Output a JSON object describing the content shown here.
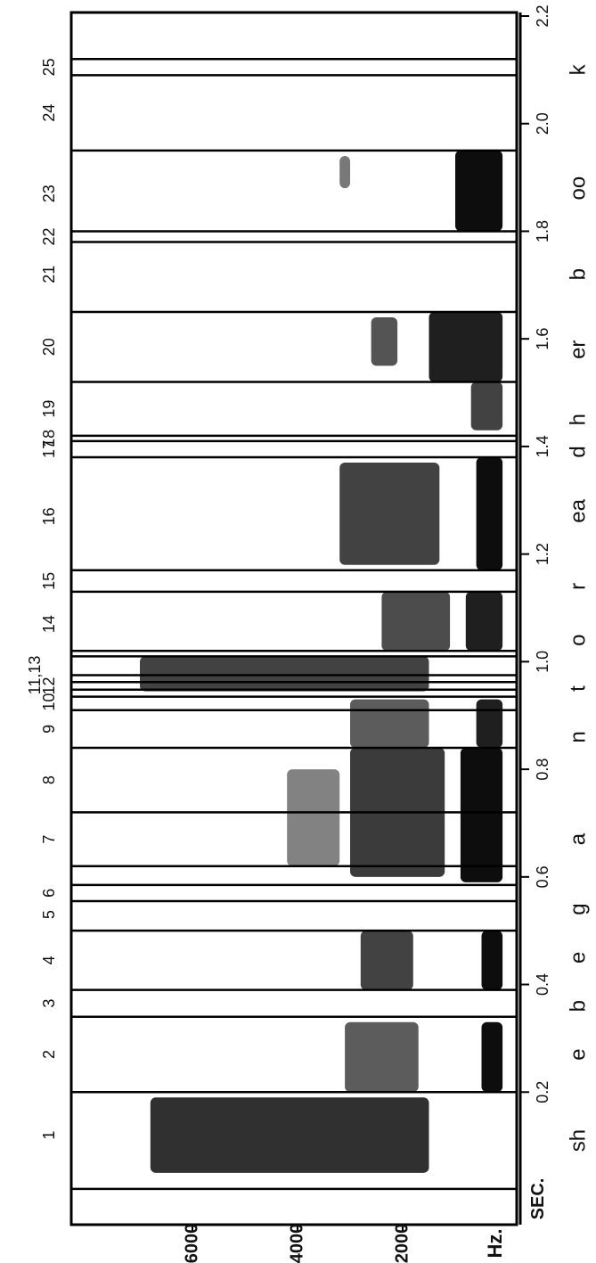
{
  "chart_data": {
    "type": "heatmap",
    "title": "",
    "time_axis": {
      "label": "SEC.",
      "range": [
        0,
        2.2
      ],
      "ticks": [
        {
          "value": 0.2,
          "label": "0.2"
        },
        {
          "value": 0.4,
          "label": "0.4"
        },
        {
          "value": 0.6,
          "label": "0.6"
        },
        {
          "value": 0.8,
          "label": "0.8"
        },
        {
          "value": 1.0,
          "label": "1.0"
        },
        {
          "value": 1.2,
          "label": "1.2"
        },
        {
          "value": 1.4,
          "label": "1.4"
        },
        {
          "value": 1.6,
          "label": "1.6"
        },
        {
          "value": 1.8,
          "label": "1.8"
        },
        {
          "value": 2.0,
          "label": "2.0"
        },
        {
          "value": 2.2,
          "label": "2.2"
        }
      ]
    },
    "frequency_axis": {
      "label": "Hz.",
      "range": [
        0,
        8000
      ],
      "ticks": [
        {
          "value": 2000,
          "label": "2000"
        },
        {
          "value": 4000,
          "label": "4000"
        },
        {
          "value": 6000,
          "label": "6000"
        }
      ]
    },
    "segment_boundaries": [
      0.02,
      0.2,
      0.34,
      0.39,
      0.5,
      0.555,
      0.585,
      0.62,
      0.72,
      0.84,
      0.91,
      0.935,
      0.948,
      0.962,
      0.975,
      1.01,
      1.02,
      1.13,
      1.17,
      1.38,
      1.41,
      1.42,
      1.52,
      1.65,
      1.78,
      1.8,
      1.95,
      2.09,
      2.12
    ],
    "segment_labels": [
      {
        "label": "1",
        "t": 0.12
      },
      {
        "label": "2",
        "t": 0.27
      },
      {
        "label": "3",
        "t": 0.365
      },
      {
        "label": "4",
        "t": 0.445
      },
      {
        "label": "5",
        "t": 0.53
      },
      {
        "label": "6",
        "t": 0.57
      },
      {
        "label": "7",
        "t": 0.67
      },
      {
        "label": "8",
        "t": 0.78
      },
      {
        "label": "9",
        "t": 0.875
      },
      {
        "label": "10",
        "t": 0.925
      },
      {
        "label": "12",
        "t": 0.955
      },
      {
        "label": "11,13",
        "t": 0.975
      },
      {
        "label": "14",
        "t": 1.07
      },
      {
        "label": "15",
        "t": 1.15
      },
      {
        "label": "16",
        "t": 1.27
      },
      {
        "label": "17",
        "t": 1.395
      },
      {
        "label": "18",
        "t": 1.415
      },
      {
        "label": "19",
        "t": 1.47
      },
      {
        "label": "20",
        "t": 1.585
      },
      {
        "label": "21",
        "t": 1.72
      },
      {
        "label": "22",
        "t": 1.79
      },
      {
        "label": "23",
        "t": 1.87
      },
      {
        "label": "24",
        "t": 2.02
      },
      {
        "label": "25",
        "t": 2.105
      }
    ],
    "phonetic_labels": [
      {
        "label": "sh",
        "t": 0.11
      },
      {
        "label": "e",
        "t": 0.27
      },
      {
        "label": "b",
        "t": 0.36
      },
      {
        "label": "e",
        "t": 0.45
      },
      {
        "label": "g",
        "t": 0.54
      },
      {
        "label": "a",
        "t": 0.67
      },
      {
        "label": "n",
        "t": 0.86
      },
      {
        "label": "t",
        "t": 0.95
      },
      {
        "label": "o",
        "t": 1.04
      },
      {
        "label": "r",
        "t": 1.14
      },
      {
        "label": "ea",
        "t": 1.28
      },
      {
        "label": "d",
        "t": 1.39
      },
      {
        "label": "h",
        "t": 1.45
      },
      {
        "label": "er",
        "t": 1.58
      },
      {
        "label": "b",
        "t": 1.72
      },
      {
        "label": "oo",
        "t": 1.88
      },
      {
        "label": "k",
        "t": 2.1
      }
    ],
    "energy_regions": [
      {
        "t0": 0.05,
        "t1": 0.19,
        "f0": 1500,
        "f1": 6800,
        "intensity": 0.8
      },
      {
        "t0": 0.2,
        "t1": 0.33,
        "f0": 100,
        "f1": 500,
        "intensity": 1.0
      },
      {
        "t0": 0.2,
        "t1": 0.33,
        "f0": 1700,
        "f1": 3100,
        "intensity": 0.55
      },
      {
        "t0": 0.39,
        "t1": 0.5,
        "f0": 100,
        "f1": 500,
        "intensity": 1.0
      },
      {
        "t0": 0.39,
        "t1": 0.5,
        "f0": 1800,
        "f1": 2800,
        "intensity": 0.7
      },
      {
        "t0": 0.59,
        "t1": 0.84,
        "f0": 100,
        "f1": 900,
        "intensity": 1.0
      },
      {
        "t0": 0.6,
        "t1": 0.84,
        "f0": 1200,
        "f1": 3000,
        "intensity": 0.75
      },
      {
        "t0": 0.62,
        "t1": 0.8,
        "f0": 3200,
        "f1": 4200,
        "intensity": 0.35
      },
      {
        "t0": 0.84,
        "t1": 0.93,
        "f0": 100,
        "f1": 600,
        "intensity": 0.9
      },
      {
        "t0": 0.84,
        "t1": 0.93,
        "f0": 1500,
        "f1": 3000,
        "intensity": 0.55
      },
      {
        "t0": 0.945,
        "t1": 1.01,
        "f0": 1500,
        "f1": 7000,
        "intensity": 0.7
      },
      {
        "t0": 1.02,
        "t1": 1.13,
        "f0": 100,
        "f1": 800,
        "intensity": 0.9
      },
      {
        "t0": 1.02,
        "t1": 1.13,
        "f0": 1100,
        "f1": 2400,
        "intensity": 0.65
      },
      {
        "t0": 1.17,
        "t1": 1.38,
        "f0": 100,
        "f1": 600,
        "intensity": 1.0
      },
      {
        "t0": 1.18,
        "t1": 1.37,
        "f0": 1300,
        "f1": 3200,
        "intensity": 0.7
      },
      {
        "t0": 1.43,
        "t1": 1.52,
        "f0": 100,
        "f1": 700,
        "intensity": 0.7
      },
      {
        "t0": 1.52,
        "t1": 1.65,
        "f0": 100,
        "f1": 1500,
        "intensity": 0.9
      },
      {
        "t0": 1.55,
        "t1": 1.64,
        "f0": 2100,
        "f1": 2600,
        "intensity": 0.6
      },
      {
        "t0": 1.8,
        "t1": 1.95,
        "f0": 100,
        "f1": 1000,
        "intensity": 1.0
      },
      {
        "t0": 1.88,
        "t1": 1.94,
        "f0": 3000,
        "f1": 3200,
        "intensity": 0.4
      }
    ]
  }
}
